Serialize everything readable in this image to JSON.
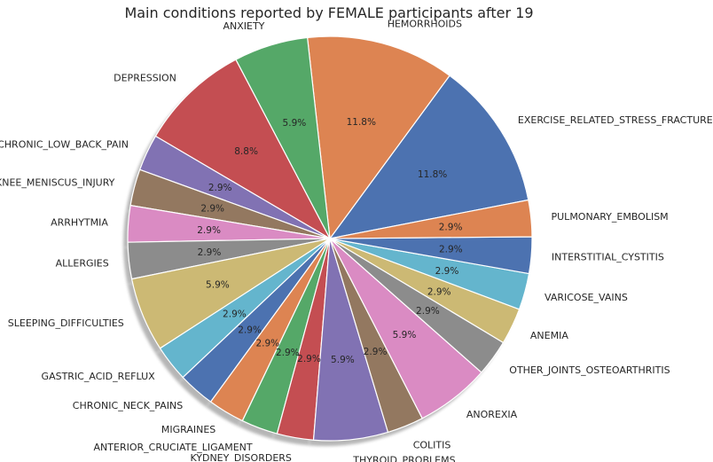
{
  "chart_data": {
    "type": "pie",
    "title": "Main conditions reported by FEMALE participants after 19",
    "start_angle_deg": 11,
    "direction": "counterclockwise",
    "shadow": true,
    "wedge_edge_color": "#ffffff",
    "slices": [
      {
        "label": "EXERCISE_RELATED_STRESS_FRACTURE",
        "value": 11.8,
        "pct_label": "11.8%",
        "color": "#4c72b0"
      },
      {
        "label": "HEMORRHOIDS",
        "value": 11.8,
        "pct_label": "11.8%",
        "color": "#dd8452"
      },
      {
        "label": "ANXIETY",
        "value": 5.9,
        "pct_label": "5.9%",
        "color": "#55a868"
      },
      {
        "label": "DEPRESSION",
        "value": 8.8,
        "pct_label": "8.8%",
        "color": "#c44e52"
      },
      {
        "label": "CHRONIC_LOW_BACK_PAIN",
        "value": 2.9,
        "pct_label": "2.9%",
        "color": "#8172b3"
      },
      {
        "label": "KNEE_MENISCUS_INJURY",
        "value": 2.9,
        "pct_label": "2.9%",
        "color": "#937860"
      },
      {
        "label": "ARRHYTMIA",
        "value": 2.9,
        "pct_label": "2.9%",
        "color": "#da8bc3"
      },
      {
        "label": "ALLERGIES",
        "value": 2.9,
        "pct_label": "2.9%",
        "color": "#8c8c8c"
      },
      {
        "label": "SLEEPING_DIFFICULTIES",
        "value": 5.9,
        "pct_label": "5.9%",
        "color": "#ccb974"
      },
      {
        "label": "GASTRIC_ACID_REFLUX",
        "value": 2.9,
        "pct_label": "2.9%",
        "color": "#64b5cd"
      },
      {
        "label": "CHRONIC_NECK_PAINS",
        "value": 2.9,
        "pct_label": "2.9%",
        "color": "#4c72b0"
      },
      {
        "label": "MIGRAINES",
        "value": 2.9,
        "pct_label": "2.9%",
        "color": "#dd8452"
      },
      {
        "label": "ANTERIOR_CRUCIATE_LIGAMENT",
        "value": 2.9,
        "pct_label": "2.9%",
        "color": "#55a868"
      },
      {
        "label": "KYDNEY_DISORDERS",
        "value": 2.9,
        "pct_label": "2.9%",
        "color": "#c44e52"
      },
      {
        "label": "THYROID_PROBLEMS",
        "value": 5.9,
        "pct_label": "5.9%",
        "color": "#8172b3"
      },
      {
        "label": "COLITIS",
        "value": 2.9,
        "pct_label": "2.9%",
        "color": "#937860"
      },
      {
        "label": "ANOREXIA",
        "value": 5.9,
        "pct_label": "5.9%",
        "color": "#da8bc3"
      },
      {
        "label": "OTHER_JOINTS_OSTEOARTHRITIS",
        "value": 2.9,
        "pct_label": "2.9%",
        "color": "#8c8c8c"
      },
      {
        "label": "ANEMIA",
        "value": 2.9,
        "pct_label": "2.9%",
        "color": "#ccb974"
      },
      {
        "label": "VARICOSE_VAINS",
        "value": 2.9,
        "pct_label": "2.9%",
        "color": "#64b5cd"
      },
      {
        "label": "INTERSTITIAL_CYSTITIS",
        "value": 2.9,
        "pct_label": "2.9%",
        "color": "#4c72b0"
      },
      {
        "label": "PULMONARY_EMBOLISM",
        "value": 2.9,
        "pct_label": "2.9%",
        "color": "#dd8452"
      }
    ]
  }
}
